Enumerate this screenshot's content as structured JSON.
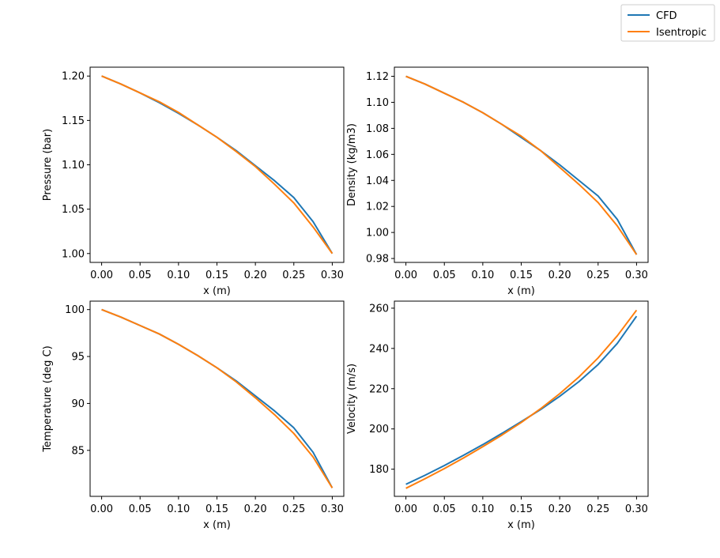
{
  "chart_data": [
    {
      "type": "line",
      "xlabel": "x (m)",
      "ylabel": "Pressure (bar)",
      "xlim": [
        -0.015,
        0.315
      ],
      "ylim": [
        0.99,
        1.21
      ],
      "xticks": [
        "0.00",
        "0.05",
        "0.10",
        "0.15",
        "0.20",
        "0.25",
        "0.30"
      ],
      "yticks": [
        "1.00",
        "1.05",
        "1.10",
        "1.15",
        "1.20"
      ],
      "x": [
        0.0,
        0.025,
        0.05,
        0.075,
        0.1,
        0.125,
        0.15,
        0.175,
        0.2,
        0.225,
        0.25,
        0.275,
        0.3
      ],
      "series": [
        {
          "name": "CFD",
          "values": [
            1.2,
            1.191,
            1.181,
            1.17,
            1.158,
            1.145,
            1.131,
            1.116,
            1.099,
            1.082,
            1.063,
            1.036,
            1.0
          ]
        },
        {
          "name": "Isentropic",
          "values": [
            1.2,
            1.191,
            1.181,
            1.171,
            1.159,
            1.145,
            1.131,
            1.115,
            1.098,
            1.078,
            1.057,
            1.03,
            1.0
          ]
        }
      ]
    },
    {
      "type": "line",
      "xlabel": "x (m)",
      "ylabel": "Density (kg/m3)",
      "xlim": [
        -0.015,
        0.315
      ],
      "ylim": [
        0.977,
        1.127
      ],
      "xticks": [
        "0.00",
        "0.05",
        "0.10",
        "0.15",
        "0.20",
        "0.25",
        "0.30"
      ],
      "yticks": [
        "0.98",
        "1.00",
        "1.02",
        "1.04",
        "1.06",
        "1.08",
        "1.10",
        "1.12"
      ],
      "x": [
        0.0,
        0.025,
        0.05,
        0.075,
        0.1,
        0.125,
        0.15,
        0.175,
        0.2,
        0.225,
        0.25,
        0.275,
        0.3
      ],
      "series": [
        {
          "name": "CFD",
          "values": [
            1.12,
            1.114,
            1.107,
            1.1,
            1.092,
            1.083,
            1.073,
            1.063,
            1.052,
            1.04,
            1.028,
            1.01,
            0.983
          ]
        },
        {
          "name": "Isentropic",
          "values": [
            1.12,
            1.114,
            1.107,
            1.1,
            1.092,
            1.083,
            1.074,
            1.063,
            1.05,
            1.037,
            1.023,
            1.005,
            0.983
          ]
        }
      ]
    },
    {
      "type": "line",
      "xlabel": "x (m)",
      "ylabel": "Temperature (deg C)",
      "xlim": [
        -0.015,
        0.315
      ],
      "ylim": [
        80.1,
        100.9
      ],
      "xticks": [
        "0.00",
        "0.05",
        "0.10",
        "0.15",
        "0.20",
        "0.25",
        "0.30"
      ],
      "yticks": [
        "85",
        "90",
        "95",
        "100"
      ],
      "x": [
        0.0,
        0.025,
        0.05,
        0.075,
        0.1,
        0.125,
        0.15,
        0.175,
        0.2,
        0.225,
        0.25,
        0.275,
        0.3
      ],
      "series": [
        {
          "name": "CFD",
          "values": [
            100.0,
            99.2,
            98.3,
            97.4,
            96.3,
            95.1,
            93.8,
            92.4,
            90.8,
            89.2,
            87.4,
            84.8,
            81.0
          ]
        },
        {
          "name": "Isentropic",
          "values": [
            100.0,
            99.2,
            98.3,
            97.4,
            96.3,
            95.1,
            93.8,
            92.3,
            90.6,
            88.8,
            86.8,
            84.3,
            81.0
          ]
        }
      ]
    },
    {
      "type": "line",
      "xlabel": "x (m)",
      "ylabel": "Velocity (m/s)",
      "xlim": [
        -0.015,
        0.315
      ],
      "ylim": [
        166.5,
        263.5
      ],
      "xticks": [
        "0.00",
        "0.05",
        "0.10",
        "0.15",
        "0.20",
        "0.25",
        "0.30"
      ],
      "yticks": [
        "180",
        "200",
        "220",
        "240",
        "260"
      ],
      "x": [
        0.0,
        0.025,
        0.05,
        0.075,
        0.1,
        0.125,
        0.15,
        0.175,
        0.2,
        0.225,
        0.25,
        0.275,
        0.3
      ],
      "series": [
        {
          "name": "CFD",
          "values": [
            172.5,
            177.0,
            181.8,
            186.9,
            192.2,
            197.8,
            203.6,
            209.6,
            216.2,
            223.5,
            232.0,
            242.5,
            256.0
          ]
        },
        {
          "name": "Isentropic",
          "values": [
            170.5,
            175.3,
            180.3,
            185.6,
            191.2,
            197.0,
            203.2,
            210.0,
            217.5,
            225.8,
            235.3,
            246.3,
            259.0
          ]
        }
      ]
    }
  ],
  "legend": {
    "position": "top-right",
    "entries": [
      {
        "label": "CFD",
        "color": "#1f77b4"
      },
      {
        "label": "Isentropic",
        "color": "#ff7f0e"
      }
    ]
  },
  "colors": {
    "series": [
      "#1f77b4",
      "#ff7f0e"
    ],
    "axes": "#000000"
  }
}
